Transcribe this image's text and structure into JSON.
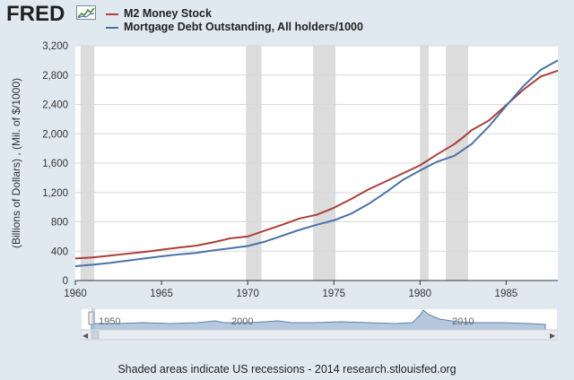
{
  "header": {
    "logo_text": "FRED"
  },
  "legend": [
    {
      "label": "M2 Money Stock",
      "color": "#a9403b"
    },
    {
      "label": "Mortgage Debt Outstanding, All holders/1000",
      "color": "#4a72a8"
    }
  ],
  "footer": {
    "note": "Shaded areas indicate US recessions - 2014 research.stlouisfed.org"
  },
  "navigator": {
    "labels": [
      "1950",
      "2000",
      "2010"
    ]
  },
  "colors": {
    "background": "#e1e9f0",
    "plot_bg": "#ffffff",
    "recession": "#dcdcdc",
    "m2": "#a9403b",
    "mortgage": "#4a72a8"
  },
  "chart_data": {
    "type": "line",
    "ylabel": "(Billions of Dollars) , (Mil. of $/1000)",
    "xlabel": "",
    "xlim": [
      1960,
      1988
    ],
    "ylim": [
      0,
      3200
    ],
    "x_ticks": [
      1960,
      1965,
      1970,
      1975,
      1980,
      1985
    ],
    "x_tick_labels": [
      "1960",
      "1965",
      "1970",
      "1975",
      "1980",
      "1985"
    ],
    "y_ticks": [
      0,
      400,
      800,
      1200,
      1600,
      2000,
      2400,
      2800,
      3200
    ],
    "y_tick_labels": [
      "0",
      "400",
      "800",
      "1,200",
      "1,600",
      "2,000",
      "2,400",
      "2,800",
      "3,200"
    ],
    "grid": true,
    "recessions": [
      [
        1960.3,
        1961.1
      ],
      [
        1969.9,
        1970.8
      ],
      [
        1973.8,
        1975.1
      ],
      [
        1980.0,
        1980.5
      ],
      [
        1981.5,
        1982.8
      ]
    ],
    "series": [
      {
        "name": "M2 Money Stock",
        "x": [
          1960,
          1961,
          1962,
          1963,
          1964,
          1965,
          1966,
          1967,
          1968,
          1969,
          1970,
          1971,
          1972,
          1973,
          1974,
          1975,
          1976,
          1977,
          1978,
          1979,
          1980,
          1981,
          1982,
          1982.5,
          1983,
          1984,
          1985,
          1986,
          1987,
          1988
        ],
        "values": [
          300,
          315,
          340,
          365,
          390,
          420,
          450,
          475,
          520,
          575,
          600,
          680,
          760,
          845,
          895,
          990,
          1110,
          1240,
          1350,
          1460,
          1570,
          1720,
          1860,
          1950,
          2050,
          2180,
          2390,
          2600,
          2780,
          2860
        ]
      },
      {
        "name": "Mortgage Debt Outstanding, All holders/1000",
        "x": [
          1960,
          1961,
          1962,
          1963,
          1964,
          1965,
          1966,
          1967,
          1968,
          1969,
          1970,
          1971,
          1972,
          1973,
          1974,
          1975,
          1976,
          1977,
          1978,
          1979,
          1980,
          1981,
          1982,
          1983,
          1984,
          1985,
          1986,
          1987,
          1988
        ],
        "values": [
          195,
          215,
          240,
          270,
          300,
          330,
          355,
          375,
          410,
          440,
          470,
          530,
          610,
          690,
          760,
          820,
          910,
          1040,
          1200,
          1370,
          1500,
          1620,
          1700,
          1860,
          2100,
          2380,
          2650,
          2870,
          3000
        ]
      }
    ]
  }
}
